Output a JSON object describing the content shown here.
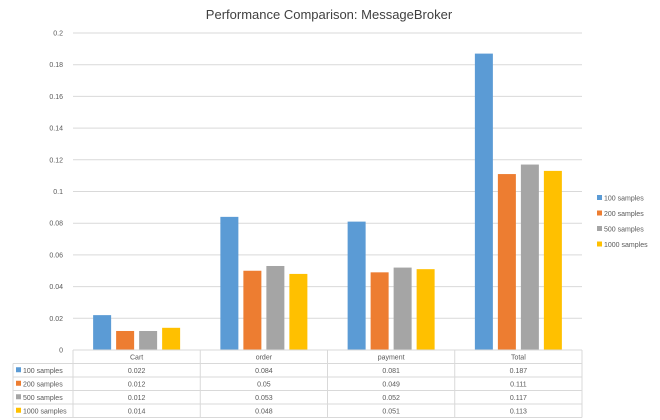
{
  "chart_data": {
    "type": "bar",
    "title": "Performance Comparison: MessageBroker",
    "categories": [
      "Cart",
      "order",
      "payment",
      "Total"
    ],
    "series": [
      {
        "name": "100 samples",
        "color": "#5b9bd5",
        "values": [
          0.022,
          0.084,
          0.081,
          0.187
        ]
      },
      {
        "name": "200 samples",
        "color": "#ed7d31",
        "values": [
          0.012,
          0.05,
          0.049,
          0.111
        ]
      },
      {
        "name": "500 samples",
        "color": "#a5a5a5",
        "values": [
          0.012,
          0.053,
          0.052,
          0.117
        ]
      },
      {
        "name": "1000 samples",
        "color": "#ffc000",
        "values": [
          0.014,
          0.048,
          0.051,
          0.113
        ]
      }
    ],
    "table_values": [
      [
        "0.022",
        "0.084",
        "0.081",
        "0.187"
      ],
      [
        "0.012",
        "0.05",
        "0.049",
        "0.111"
      ],
      [
        "0.012",
        "0.053",
        "0.052",
        "0.117"
      ],
      [
        "0.014",
        "0.048",
        "0.051",
        "0.113"
      ]
    ],
    "ylim": [
      0,
      0.2
    ],
    "yticks": [
      "0",
      "0.02",
      "0.04",
      "0.06",
      "0.08",
      "0.1",
      "0.12",
      "0.14",
      "0.16",
      "0.18",
      "0.2"
    ],
    "legend_position": "right",
    "grid": true,
    "data_table": true
  }
}
